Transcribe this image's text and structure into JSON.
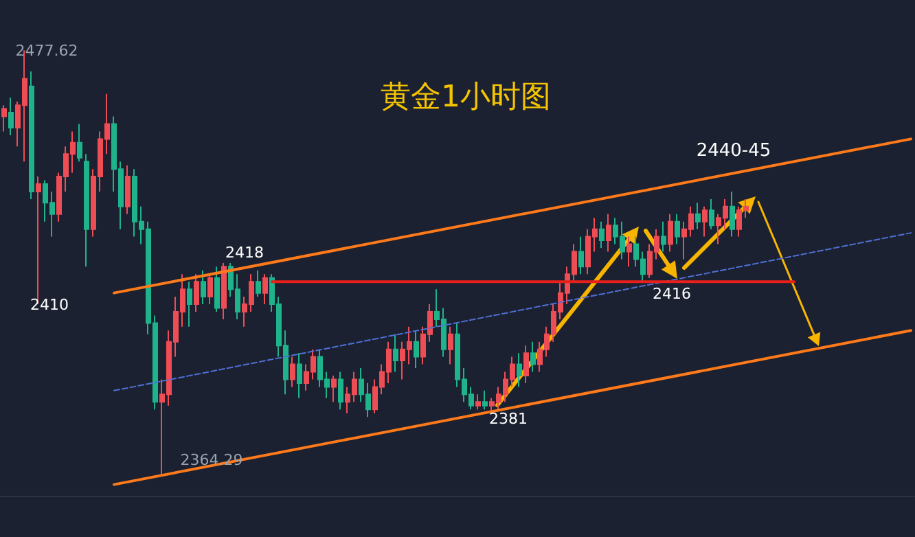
{
  "chart_data": {
    "type": "candlestick",
    "title": "黄金1小时图",
    "categories": [
      null,
      null,
      null,
      null,
      null,
      null,
      null,
      null,
      null,
      null,
      null,
      null,
      null,
      null,
      null,
      null,
      null,
      null,
      null,
      null,
      null,
      null,
      null,
      null,
      null,
      null,
      null,
      null,
      null,
      null,
      null,
      null,
      null,
      null,
      null,
      null,
      null,
      null,
      null,
      null,
      null,
      null,
      null,
      null,
      null,
      null,
      null,
      null,
      null,
      null,
      null,
      null,
      null,
      null,
      null,
      null,
      null,
      null,
      null,
      null,
      null,
      null,
      null,
      null,
      null,
      null,
      null,
      null,
      null,
      null,
      null,
      null,
      null,
      null,
      null,
      null,
      null,
      null,
      null,
      null,
      null,
      null,
      null,
      null,
      null,
      null,
      null,
      null,
      null,
      null,
      null,
      null,
      null,
      null,
      null,
      null,
      null,
      null,
      null,
      null,
      null,
      null,
      null,
      null,
      null,
      null,
      null,
      null,
      null,
      null,
      null,
      null,
      null,
      null,
      null,
      null,
      null,
      null,
      null,
      null,
      null,
      null,
      null,
      null,
      null,
      null,
      null,
      null,
      null,
      null,
      null,
      null,
      null
    ],
    "ohlc": [
      [
        2460,
        2463,
        2456,
        2462
      ],
      [
        2461,
        2465,
        2455,
        2457
      ],
      [
        2457,
        2464,
        2452,
        2463
      ],
      [
        2463,
        2477.62,
        2448,
        2470
      ],
      [
        2468,
        2472,
        2438,
        2440
      ],
      [
        2440,
        2444,
        2410,
        2442
      ],
      [
        2442,
        2443,
        2432,
        2437
      ],
      [
        2437,
        2440,
        2428,
        2434
      ],
      [
        2434,
        2445,
        2432,
        2444
      ],
      [
        2444,
        2452,
        2440,
        2450
      ],
      [
        2450,
        2456,
        2445,
        2453
      ],
      [
        2453,
        2458,
        2448,
        2449
      ],
      [
        2448,
        2450,
        2420,
        2430
      ],
      [
        2430,
        2446,
        2428,
        2444
      ],
      [
        2444,
        2456,
        2440,
        2454
      ],
      [
        2454,
        2466,
        2450,
        2458
      ],
      [
        2458,
        2460,
        2440,
        2446
      ],
      [
        2446,
        2448,
        2430,
        2436
      ],
      [
        2436,
        2447,
        2434,
        2444
      ],
      [
        2444,
        2446,
        2428,
        2432
      ],
      [
        2432,
        2436,
        2426,
        2430
      ],
      [
        2430,
        2432,
        2402,
        2405
      ],
      [
        2405,
        2407,
        2382,
        2384
      ],
      [
        2384,
        2390,
        2364.29,
        2386
      ],
      [
        2386,
        2403,
        2383,
        2400
      ],
      [
        2400,
        2412,
        2396,
        2408
      ],
      [
        2408,
        2418,
        2404,
        2414
      ],
      [
        2414,
        2416,
        2404,
        2410
      ],
      [
        2410,
        2418,
        2408,
        2416
      ],
      [
        2416,
        2419,
        2410,
        2412
      ],
      [
        2412,
        2418,
        2410,
        2417
      ],
      [
        2417,
        2420,
        2408,
        2409
      ],
      [
        2409,
        2421,
        2406,
        2420
      ],
      [
        2420,
        2421,
        2412,
        2414
      ],
      [
        2414,
        2418,
        2406,
        2408
      ],
      [
        2408,
        2412,
        2404,
        2410
      ],
      [
        2410,
        2418,
        2408,
        2416
      ],
      [
        2416,
        2419,
        2412,
        2413
      ],
      [
        2413,
        2418,
        2410,
        2417
      ],
      [
        2417,
        2418,
        2408,
        2410
      ],
      [
        2410,
        2412,
        2396,
        2399
      ],
      [
        2399,
        2403,
        2386,
        2390
      ],
      [
        2390,
        2396,
        2388,
        2394
      ],
      [
        2394,
        2397,
        2385,
        2389
      ],
      [
        2389,
        2394,
        2387,
        2392
      ],
      [
        2392,
        2398,
        2390,
        2396
      ],
      [
        2396,
        2398,
        2388,
        2390
      ],
      [
        2390,
        2392,
        2385,
        2388
      ],
      [
        2388,
        2391,
        2384,
        2390
      ],
      [
        2390,
        2392,
        2382,
        2384
      ],
      [
        2384,
        2388,
        2381,
        2386
      ],
      [
        2386,
        2392,
        2384,
        2390
      ],
      [
        2390,
        2393,
        2384,
        2386
      ],
      [
        2386,
        2389,
        2380,
        2382
      ],
      [
        2382,
        2390,
        2381,
        2388
      ],
      [
        2388,
        2394,
        2386,
        2392
      ],
      [
        2392,
        2400,
        2389,
        2398
      ],
      [
        2398,
        2402,
        2392,
        2395
      ],
      [
        2395,
        2400,
        2390,
        2398
      ],
      [
        2398,
        2404,
        2394,
        2400
      ],
      [
        2400,
        2403,
        2393,
        2396
      ],
      [
        2396,
        2404,
        2394,
        2402
      ],
      [
        2402,
        2410,
        2400,
        2408
      ],
      [
        2408,
        2414,
        2404,
        2406
      ],
      [
        2406,
        2409,
        2396,
        2398
      ],
      [
        2398,
        2404,
        2394,
        2402
      ],
      [
        2402,
        2405,
        2388,
        2390
      ],
      [
        2390,
        2393,
        2384,
        2386
      ],
      [
        2386,
        2388,
        2382,
        2383
      ],
      [
        2383,
        2386,
        2382,
        2384
      ],
      [
        2384,
        2387,
        2382,
        2383
      ],
      [
        2383,
        2385,
        2381,
        2384
      ],
      [
        2384,
        2388,
        2382,
        2386
      ],
      [
        2386,
        2392,
        2384,
        2390
      ],
      [
        2390,
        2396,
        2388,
        2394
      ],
      [
        2394,
        2397,
        2388,
        2391
      ],
      [
        2391,
        2399,
        2389,
        2397
      ],
      [
        2397,
        2400,
        2392,
        2394
      ],
      [
        2394,
        2400,
        2392,
        2398
      ],
      [
        2398,
        2404,
        2396,
        2402
      ],
      [
        2402,
        2410,
        2400,
        2408
      ],
      [
        2408,
        2416,
        2406,
        2413
      ],
      [
        2413,
        2420,
        2410,
        2418
      ],
      [
        2418,
        2426,
        2416,
        2424
      ],
      [
        2424,
        2428,
        2418,
        2420
      ],
      [
        2420,
        2430,
        2418,
        2428
      ],
      [
        2428,
        2433,
        2424,
        2430
      ],
      [
        2430,
        2432,
        2425,
        2427
      ],
      [
        2427,
        2434,
        2424,
        2431
      ],
      [
        2431,
        2433,
        2426,
        2428
      ],
      [
        2428,
        2432,
        2422,
        2424
      ],
      [
        2424,
        2428,
        2420,
        2426
      ],
      [
        2426,
        2428,
        2420,
        2422
      ],
      [
        2422,
        2424,
        2416,
        2418
      ],
      [
        2418,
        2426,
        2417,
        2424
      ],
      [
        2424,
        2430,
        2422,
        2428
      ],
      [
        2428,
        2432,
        2424,
        2426
      ],
      [
        2426,
        2434,
        2424,
        2432
      ],
      [
        2432,
        2434,
        2426,
        2428
      ],
      [
        2428,
        2432,
        2422,
        2430
      ],
      [
        2430,
        2436,
        2428,
        2434
      ],
      [
        2434,
        2437,
        2430,
        2432
      ],
      [
        2432,
        2436,
        2428,
        2435
      ],
      [
        2435,
        2438,
        2430,
        2431
      ],
      [
        2431,
        2434,
        2426,
        2433
      ],
      [
        2433,
        2438,
        2430,
        2436
      ],
      [
        2436,
        2440,
        2428,
        2430
      ],
      [
        2430,
        2436,
        2428,
        2435
      ],
      [
        2435,
        2438,
        2433,
        2436
      ],
      null,
      null,
      null,
      null,
      null,
      null,
      null,
      null,
      null,
      null,
      null,
      null,
      null,
      null,
      null,
      null,
      null,
      null,
      null,
      null,
      null,
      null,
      null,
      null
    ],
    "colors": [
      "#ef4d55",
      "#1fb38c",
      "#ef4d55",
      "#ef4d55",
      "#1fb38c",
      "#ef4d55",
      "#1fb38c",
      "#1fb38c",
      "#ef4d55",
      "#ef4d55",
      "#ef4d55",
      "#1fb38c",
      "#1fb38c",
      "#ef4d55",
      "#ef4d55",
      "#ef4d55",
      "#1fb38c",
      "#1fb38c",
      "#ef4d55",
      "#1fb38c",
      "#1fb38c",
      "#1fb38c",
      "#1fb38c",
      "#ef4d55",
      "#ef4d55",
      "#ef4d55",
      "#ef4d55",
      "#1fb38c",
      "#ef4d55",
      "#1fb38c",
      "#ef4d55",
      "#1fb38c",
      "#ef4d55",
      "#1fb38c",
      "#1fb38c",
      "#ef4d55",
      "#ef4d55",
      "#1fb38c",
      "#ef4d55",
      "#1fb38c",
      "#1fb38c",
      "#1fb38c",
      "#ef4d55",
      "#1fb38c",
      "#ef4d55",
      "#ef4d55",
      "#1fb38c",
      "#1fb38c",
      "#ef4d55",
      "#1fb38c",
      "#ef4d55",
      "#ef4d55",
      "#1fb38c",
      "#1fb38c",
      "#ef4d55",
      "#ef4d55",
      "#ef4d55",
      "#1fb38c",
      "#ef4d55",
      "#ef4d55",
      "#1fb38c",
      "#ef4d55",
      "#ef4d55",
      "#1fb38c",
      "#1fb38c",
      "#ef4d55",
      "#1fb38c",
      "#1fb38c",
      "#1fb38c",
      "#ef4d55",
      "#1fb38c",
      "#ef4d55",
      "#ef4d55",
      "#ef4d55",
      "#ef4d55",
      "#1fb38c",
      "#ef4d55",
      "#1fb38c",
      "#ef4d55",
      "#ef4d55",
      "#ef4d55",
      "#ef4d55",
      "#ef4d55",
      "#ef4d55",
      "#1fb38c",
      "#ef4d55",
      "#ef4d55",
      "#1fb38c",
      "#ef4d55",
      "#1fb38c",
      "#1fb38c",
      "#ef4d55",
      "#1fb38c",
      "#1fb38c",
      "#ef4d55",
      "#ef4d55",
      "#1fb38c",
      "#ef4d55",
      "#1fb38c",
      "#ef4d55",
      "#ef4d55",
      "#1fb38c",
      "#ef4d55",
      "#1fb38c",
      "#ef4d55",
      "#ef4d55",
      "#1fb38c",
      "#ef4d55",
      "#ef4d55",
      null,
      null,
      null,
      null,
      null,
      null,
      null,
      null,
      null,
      null,
      null,
      null,
      null,
      null,
      null,
      null,
      null,
      null,
      null,
      null,
      null,
      null,
      null,
      null
    ],
    "series": [
      {
        "type": "line",
        "color": "#ff7a1a",
        "line_style": "solid",
        "values": [
          null,
          null,
          null,
          null,
          null,
          null,
          null,
          null,
          null,
          null,
          null,
          null,
          null,
          null,
          null,
          null,
          2413,
          null,
          null,
          null,
          null,
          null,
          null,
          null,
          null,
          null,
          null,
          null,
          null,
          null,
          null,
          null,
          null,
          null,
          null,
          null,
          null,
          null,
          null,
          null,
          null,
          null,
          null,
          null,
          null,
          null,
          null,
          null,
          null,
          null,
          null,
          null,
          null,
          null,
          null,
          null,
          null,
          null,
          null,
          null,
          null,
          null,
          null,
          null,
          null,
          null,
          null,
          null,
          null,
          null,
          null,
          null,
          null,
          null,
          null,
          null,
          null,
          null,
          null,
          null,
          null,
          null,
          null,
          null,
          null,
          null,
          null,
          null,
          null,
          null,
          null,
          null,
          null,
          null,
          null,
          null,
          null,
          null,
          null,
          null,
          null,
          null,
          null,
          null,
          null,
          null,
          null,
          null,
          null,
          null,
          null,
          null,
          null,
          null,
          null,
          null,
          null,
          null,
          null,
          null,
          null,
          null,
          null,
          null,
          null,
          null,
          null,
          null,
          null,
          null,
          null,
          null,
          2454
        ]
      },
      {
        "type": "line",
        "color": "#ff7a1a",
        "line_style": "solid",
        "values": [
          null,
          null,
          null,
          null,
          null,
          null,
          null,
          null,
          null,
          null,
          null,
          null,
          null,
          null,
          null,
          null,
          2362,
          null,
          null,
          null,
          null,
          null,
          null,
          null,
          null,
          null,
          null,
          null,
          null,
          null,
          null,
          null,
          null,
          null,
          null,
          null,
          null,
          null,
          null,
          null,
          null,
          null,
          null,
          null,
          null,
          null,
          null,
          null,
          null,
          null,
          null,
          null,
          null,
          null,
          null,
          null,
          null,
          null,
          null,
          null,
          null,
          null,
          null,
          null,
          null,
          null,
          null,
          null,
          null,
          null,
          null,
          null,
          null,
          null,
          null,
          null,
          null,
          null,
          null,
          null,
          null,
          null,
          null,
          null,
          null,
          null,
          null,
          null,
          null,
          null,
          null,
          null,
          null,
          null,
          null,
          null,
          null,
          null,
          null,
          null,
          null,
          null,
          null,
          null,
          null,
          null,
          null,
          null,
          null,
          null,
          null,
          null,
          null,
          null,
          null,
          null,
          null,
          null,
          null,
          null,
          null,
          null,
          null,
          null,
          null,
          null,
          null,
          null,
          null,
          null,
          null,
          null,
          2403
        ]
      },
      {
        "type": "line",
        "color": "#4f6fd6",
        "line_style": "dashed",
        "values": [
          null,
          null,
          null,
          null,
          null,
          null,
          null,
          null,
          null,
          null,
          null,
          null,
          null,
          null,
          null,
          null,
          2387,
          null,
          null,
          null,
          null,
          null,
          null,
          null,
          null,
          null,
          null,
          null,
          null,
          null,
          null,
          null,
          null,
          null,
          null,
          null,
          null,
          null,
          null,
          null,
          null,
          null,
          null,
          null,
          null,
          null,
          null,
          null,
          null,
          null,
          null,
          null,
          null,
          null,
          null,
          null,
          null,
          null,
          null,
          null,
          null,
          null,
          null,
          null,
          null,
          null,
          null,
          null,
          null,
          null,
          null,
          null,
          null,
          null,
          null,
          null,
          null,
          null,
          null,
          null,
          null,
          null,
          null,
          null,
          null,
          null,
          null,
          null,
          null,
          null,
          null,
          null,
          null,
          null,
          null,
          null,
          null,
          null,
          null,
          null,
          null,
          null,
          null,
          null,
          null,
          null,
          null,
          null,
          null,
          null,
          null,
          null,
          null,
          null,
          null,
          null,
          null,
          null,
          null,
          null,
          null,
          null,
          null,
          null,
          null,
          null,
          null,
          null,
          null,
          null,
          null,
          null,
          2429
        ]
      },
      {
        "type": "line",
        "color": "#e8201c",
        "line_style": "solid",
        "values": [
          null,
          null,
          null,
          null,
          null,
          null,
          null,
          null,
          null,
          null,
          null,
          null,
          null,
          null,
          null,
          null,
          null,
          null,
          null,
          null,
          null,
          null,
          null,
          null,
          null,
          null,
          null,
          null,
          null,
          null,
          null,
          null,
          null,
          null,
          null,
          null,
          null,
          null,
          null,
          2416,
          null,
          null,
          null,
          null,
          null,
          null,
          null,
          null,
          null,
          null,
          null,
          null,
          null,
          null,
          null,
          null,
          null,
          null,
          null,
          null,
          null,
          null,
          null,
          null,
          null,
          null,
          null,
          null,
          null,
          null,
          null,
          null,
          null,
          null,
          null,
          null,
          null,
          null,
          null,
          null,
          null,
          null,
          null,
          null,
          null,
          null,
          null,
          null,
          null,
          null,
          null,
          null,
          null,
          null,
          null,
          null,
          null,
          null,
          null,
          null,
          null,
          null,
          null,
          null,
          null,
          null,
          null,
          null,
          null,
          null,
          null,
          null,
          null,
          null,
          null,
          2416,
          null,
          null,
          null,
          null,
          null,
          null,
          null,
          null,
          null,
          null,
          null,
          null,
          null,
          null,
          null,
          null,
          null
        ]
      }
    ],
    "ylim": [
      2359,
      2491
    ],
    "annotations": [
      "2477.62",
      "2410",
      "2364.29",
      "2418",
      "2381",
      "2416",
      "2440-45"
    ]
  }
}
